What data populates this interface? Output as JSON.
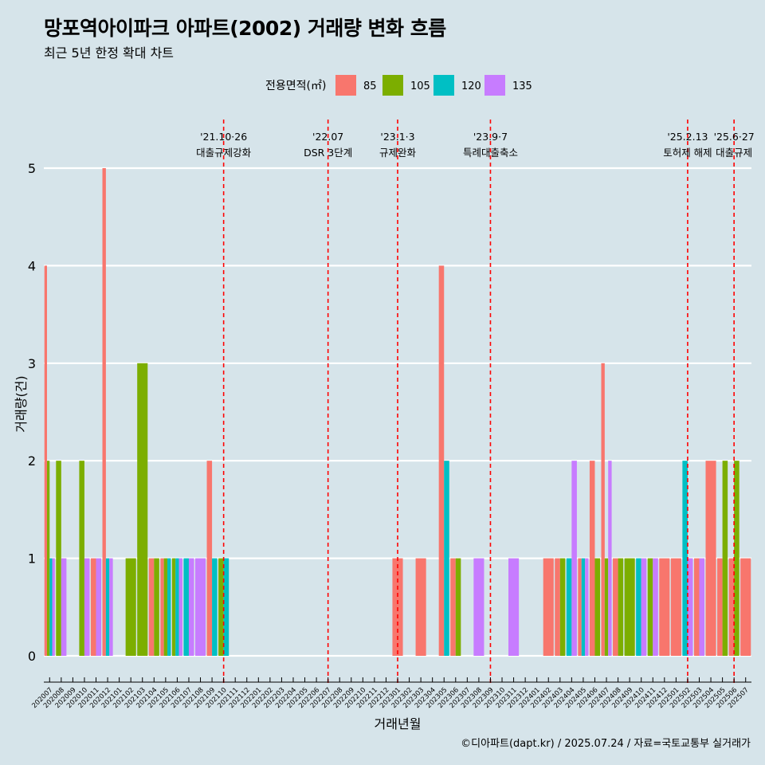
{
  "header": {
    "title": "망포역아이파크 아파트(2002) 거래량 변화 흐름",
    "subtitle": "최근 5년 한정 확대 차트"
  },
  "caption": "©디아파트(dapt.kr) / 2025.07.24 / 자료=국토교통부 실거래가",
  "colors": {
    "background": "#d6e4ea",
    "85": "#f8766d",
    "105": "#7cae00",
    "120": "#00bfc4",
    "135": "#c77cff",
    "vline": "#ff0000",
    "grid": "#ffffff"
  },
  "chart_data": {
    "type": "bar",
    "xlabel": "거래년월",
    "ylabel": "거래량(건)",
    "ylim": [
      0,
      5
    ],
    "yticks": [
      0,
      1,
      2,
      3,
      4,
      5
    ],
    "grid": true,
    "legend": {
      "title": "전용면적(㎡)",
      "position": "top",
      "entries": [
        "85",
        "105",
        "120",
        "135"
      ]
    },
    "months": [
      "202007",
      "202008",
      "202009",
      "202010",
      "202011",
      "202012",
      "202101",
      "202102",
      "202103",
      "202104",
      "202105",
      "202106",
      "202107",
      "202108",
      "202109",
      "202110",
      "202111",
      "202112",
      "202201",
      "202202",
      "202203",
      "202204",
      "202205",
      "202206",
      "202207",
      "202208",
      "202209",
      "202210",
      "202211",
      "202212",
      "202301",
      "202302",
      "202303",
      "202304",
      "202305",
      "202306",
      "202307",
      "202308",
      "202309",
      "202310",
      "202311",
      "202312",
      "202401",
      "202402",
      "202403",
      "202404",
      "202405",
      "202406",
      "202407",
      "202408",
      "202409",
      "202410",
      "202411",
      "202412",
      "202501",
      "202502",
      "202503",
      "202504",
      "202505",
      "202506",
      "202507"
    ],
    "series": [
      {
        "name": "85",
        "data": [
          [
            "202007",
            4
          ],
          [
            "202011",
            1
          ],
          [
            "202012",
            5
          ],
          [
            "202104",
            1
          ],
          [
            "202105",
            1
          ],
          [
            "202109",
            2
          ],
          [
            "202301",
            1
          ],
          [
            "202303",
            1
          ],
          [
            "202305",
            4
          ],
          [
            "202306",
            1
          ],
          [
            "202402",
            1
          ],
          [
            "202403",
            1
          ],
          [
            "202405",
            1
          ],
          [
            "202406",
            2
          ],
          [
            "202407",
            3
          ],
          [
            "202408",
            1
          ],
          [
            "202412",
            1
          ],
          [
            "202501",
            1
          ],
          [
            "202503",
            1
          ],
          [
            "202504",
            2
          ],
          [
            "202505",
            1
          ],
          [
            "202506",
            1
          ],
          [
            "202507",
            1
          ]
        ]
      },
      {
        "name": "105",
        "data": [
          [
            "202007",
            2
          ],
          [
            "202008",
            2
          ],
          [
            "202010",
            2
          ],
          [
            "202102",
            1
          ],
          [
            "202103",
            3
          ],
          [
            "202104",
            1
          ],
          [
            "202105",
            1
          ],
          [
            "202106",
            1
          ],
          [
            "202110",
            1
          ],
          [
            "202306",
            1
          ],
          [
            "202403",
            1
          ],
          [
            "202406",
            1
          ],
          [
            "202407",
            1
          ],
          [
            "202408",
            1
          ],
          [
            "202409",
            1
          ],
          [
            "202411",
            1
          ],
          [
            "202505",
            2
          ],
          [
            "202506",
            2
          ]
        ]
      },
      {
        "name": "120",
        "data": [
          [
            "202007",
            1
          ],
          [
            "202012",
            1
          ],
          [
            "202105",
            1
          ],
          [
            "202106",
            1
          ],
          [
            "202107",
            1
          ],
          [
            "202109",
            1
          ],
          [
            "202110",
            1
          ],
          [
            "202305",
            2
          ],
          [
            "202404",
            1
          ],
          [
            "202405",
            1
          ],
          [
            "202410",
            1
          ],
          [
            "202502",
            2
          ]
        ]
      },
      {
        "name": "135",
        "data": [
          [
            "202007",
            1
          ],
          [
            "202008",
            1
          ],
          [
            "202010",
            1
          ],
          [
            "202011",
            1
          ],
          [
            "202012",
            1
          ],
          [
            "202106",
            1
          ],
          [
            "202107",
            1
          ],
          [
            "202108",
            1
          ],
          [
            "202308",
            1
          ],
          [
            "202311",
            1
          ],
          [
            "202404",
            2
          ],
          [
            "202405",
            1
          ],
          [
            "202407",
            2
          ],
          [
            "202410",
            1
          ],
          [
            "202411",
            1
          ],
          [
            "202502",
            1
          ],
          [
            "202503",
            1
          ]
        ]
      }
    ],
    "events": [
      {
        "date": "202110",
        "label1": "'21.10·26",
        "label2": "대출규제강화"
      },
      {
        "date": "202207",
        "label1": "'22.07",
        "label2": "DSR 3단계"
      },
      {
        "date": "202301",
        "label1": "'23.1·3",
        "label2": "규제완화"
      },
      {
        "date": "202309",
        "label1": "'23.9·7",
        "label2": "특례대출축소"
      },
      {
        "date": "202502",
        "label1": "'25.2.13",
        "label2": "토허제 해제"
      },
      {
        "date": "202506",
        "label1": "'25.6·27",
        "label2": "대출규제"
      }
    ]
  }
}
